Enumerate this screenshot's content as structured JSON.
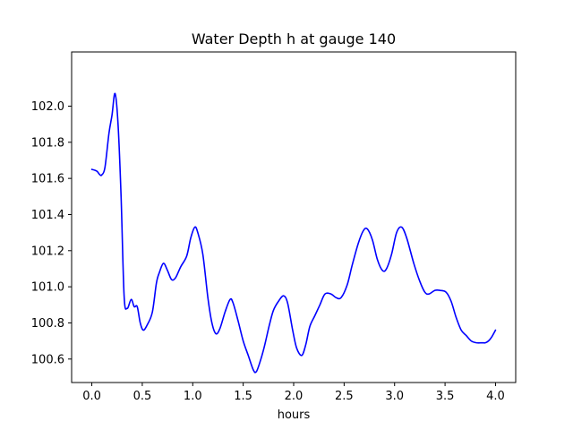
{
  "chart_data": {
    "type": "line",
    "title": "Water Depth h at gauge 140",
    "xlabel": "hours",
    "ylabel": "",
    "xlim": [
      -0.2,
      4.2
    ],
    "ylim": [
      100.47,
      102.3
    ],
    "grid": false,
    "x_ticks": [
      {
        "value": 0.0,
        "label": "0.0"
      },
      {
        "value": 0.5,
        "label": "0.5"
      },
      {
        "value": 1.0,
        "label": "1.0"
      },
      {
        "value": 1.5,
        "label": "1.5"
      },
      {
        "value": 2.0,
        "label": "2.0"
      },
      {
        "value": 2.5,
        "label": "2.5"
      },
      {
        "value": 3.0,
        "label": "3.0"
      },
      {
        "value": 3.5,
        "label": "3.5"
      },
      {
        "value": 4.0,
        "label": "4.0"
      }
    ],
    "y_ticks": [
      {
        "value": 100.6,
        "label": "100.6"
      },
      {
        "value": 100.8,
        "label": "100.8"
      },
      {
        "value": 101.0,
        "label": "101.0"
      },
      {
        "value": 101.2,
        "label": "101.2"
      },
      {
        "value": 101.4,
        "label": "101.4"
      },
      {
        "value": 101.6,
        "label": "101.6"
      },
      {
        "value": 101.8,
        "label": "101.8"
      },
      {
        "value": 102.0,
        "label": "102.0"
      }
    ],
    "series": [
      {
        "color": "#0000ff",
        "points": [
          [
            0.0,
            101.65
          ],
          [
            0.05,
            101.64
          ],
          [
            0.08,
            101.62
          ],
          [
            0.1,
            101.62
          ],
          [
            0.13,
            101.66
          ],
          [
            0.17,
            101.85
          ],
          [
            0.2,
            101.95
          ],
          [
            0.23,
            102.07
          ],
          [
            0.26,
            101.9
          ],
          [
            0.29,
            101.5
          ],
          [
            0.32,
            100.95
          ],
          [
            0.35,
            100.88
          ],
          [
            0.39,
            100.93
          ],
          [
            0.42,
            100.89
          ],
          [
            0.45,
            100.89
          ],
          [
            0.48,
            100.8
          ],
          [
            0.51,
            100.76
          ],
          [
            0.55,
            100.79
          ],
          [
            0.6,
            100.86
          ],
          [
            0.64,
            101.02
          ],
          [
            0.67,
            101.08
          ],
          [
            0.71,
            101.13
          ],
          [
            0.75,
            101.09
          ],
          [
            0.79,
            101.04
          ],
          [
            0.83,
            101.05
          ],
          [
            0.88,
            101.11
          ],
          [
            0.94,
            101.17
          ],
          [
            0.98,
            101.27
          ],
          [
            1.02,
            101.33
          ],
          [
            1.05,
            101.3
          ],
          [
            1.1,
            101.18
          ],
          [
            1.15,
            100.94
          ],
          [
            1.19,
            100.8
          ],
          [
            1.23,
            100.74
          ],
          [
            1.27,
            100.77
          ],
          [
            1.32,
            100.86
          ],
          [
            1.37,
            100.93
          ],
          [
            1.4,
            100.91
          ],
          [
            1.45,
            100.81
          ],
          [
            1.5,
            100.7
          ],
          [
            1.55,
            100.62
          ],
          [
            1.6,
            100.54
          ],
          [
            1.63,
            100.53
          ],
          [
            1.67,
            100.59
          ],
          [
            1.71,
            100.67
          ],
          [
            1.76,
            100.79
          ],
          [
            1.8,
            100.87
          ],
          [
            1.85,
            100.92
          ],
          [
            1.9,
            100.95
          ],
          [
            1.94,
            100.91
          ],
          [
            1.99,
            100.76
          ],
          [
            2.03,
            100.66
          ],
          [
            2.08,
            100.62
          ],
          [
            2.12,
            100.68
          ],
          [
            2.16,
            100.78
          ],
          [
            2.21,
            100.84
          ],
          [
            2.26,
            100.9
          ],
          [
            2.31,
            100.96
          ],
          [
            2.37,
            100.96
          ],
          [
            2.42,
            100.94
          ],
          [
            2.47,
            100.94
          ],
          [
            2.53,
            101.01
          ],
          [
            2.58,
            101.12
          ],
          [
            2.64,
            101.24
          ],
          [
            2.69,
            101.31
          ],
          [
            2.73,
            101.32
          ],
          [
            2.78,
            101.26
          ],
          [
            2.83,
            101.15
          ],
          [
            2.88,
            101.09
          ],
          [
            2.92,
            101.1
          ],
          [
            2.97,
            101.18
          ],
          [
            3.02,
            101.3
          ],
          [
            3.07,
            101.33
          ],
          [
            3.12,
            101.27
          ],
          [
            3.19,
            101.13
          ],
          [
            3.25,
            101.03
          ],
          [
            3.3,
            100.97
          ],
          [
            3.34,
            100.96
          ],
          [
            3.4,
            100.98
          ],
          [
            3.45,
            100.98
          ],
          [
            3.51,
            100.97
          ],
          [
            3.56,
            100.92
          ],
          [
            3.61,
            100.83
          ],
          [
            3.66,
            100.76
          ],
          [
            3.71,
            100.73
          ],
          [
            3.76,
            100.7
          ],
          [
            3.81,
            100.69
          ],
          [
            3.87,
            100.69
          ],
          [
            3.9,
            100.69
          ],
          [
            3.93,
            100.7
          ],
          [
            3.96,
            100.72
          ],
          [
            4.0,
            100.76
          ]
        ]
      }
    ]
  }
}
